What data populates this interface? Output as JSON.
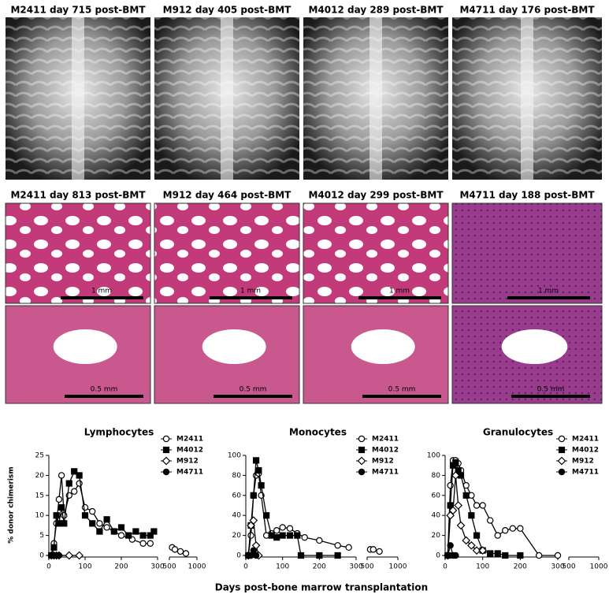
{
  "panels": {
    "xray_labels": [
      "M2411 day 715 post-BMT",
      "M912 day 405 post-BMT",
      "M4012 day 289 post-BMT",
      "M4711 day 176 post-BMT"
    ],
    "histology_labels": [
      "M2411 day 813 post-BMT",
      "M912 day 464 post-BMT",
      "M4012 day 299 post-BMT",
      "M4711 day 188 post-BMT"
    ],
    "scale_bars_row1": [
      "1 mm",
      "1 mm",
      "1 mm",
      "1 mm"
    ],
    "scale_bars_row2": [
      "0.5 mm",
      "0.5 mm",
      "0.5 mm",
      "0.5 mm"
    ]
  },
  "shared_axes": {
    "x_label": "Days post-bone marrow transplantation",
    "y_label": "% donor chimerism"
  },
  "chart_data": [
    {
      "type": "line",
      "title": "Lymphocytes",
      "xlim": [
        0,
        300
      ],
      "xticks": [
        0,
        100,
        200,
        300
      ],
      "x2lim": [
        500,
        1000
      ],
      "x2ticks": [
        500,
        1000
      ],
      "ylim": [
        0,
        25
      ],
      "yticks": [
        0,
        5,
        10,
        15,
        20,
        25
      ],
      "series": [
        {
          "name": "M2411",
          "color": "#000000",
          "marker": "circle",
          "filled": false,
          "x": [
            7,
            14,
            21,
            28,
            35,
            42,
            56,
            70,
            84,
            100,
            120,
            140,
            160,
            180,
            200,
            230,
            260,
            280,
            550,
            600,
            700,
            800
          ],
          "values": [
            0,
            3,
            8,
            14,
            20,
            10,
            15,
            16,
            18,
            12,
            11,
            8,
            7,
            6,
            5,
            4,
            3,
            3,
            2,
            1.5,
            1,
            0.5
          ]
        },
        {
          "name": "M4012",
          "color": "#000000",
          "marker": "square",
          "filled": true,
          "x": [
            7,
            14,
            21,
            28,
            35,
            42,
            56,
            70,
            84,
            100,
            120,
            140,
            160,
            180,
            200,
            220,
            240,
            260,
            280,
            290
          ],
          "values": [
            0,
            2,
            10,
            8,
            12,
            8,
            18,
            21,
            20,
            10,
            8,
            6,
            9,
            6,
            7,
            5,
            6,
            5,
            5,
            6
          ]
        },
        {
          "name": "M912",
          "color": "#000000",
          "marker": "diamond",
          "filled": false,
          "x": [
            7,
            14,
            21,
            28,
            56,
            84
          ],
          "values": [
            0,
            0,
            0,
            0,
            0,
            0
          ]
        },
        {
          "name": "M4711",
          "color": "#000000",
          "marker": "circle",
          "filled": true,
          "x": [
            7,
            14,
            21,
            28
          ],
          "values": [
            0,
            0,
            0,
            0
          ]
        }
      ]
    },
    {
      "type": "line",
      "title": "Monocytes",
      "xlim": [
        0,
        300
      ],
      "xticks": [
        0,
        100,
        200,
        300
      ],
      "x2lim": [
        500,
        1000
      ],
      "x2ticks": [
        500,
        1000
      ],
      "ylim": [
        0,
        100
      ],
      "yticks": [
        0,
        20,
        40,
        60,
        80,
        100
      ],
      "series": [
        {
          "name": "M2411",
          "color": "#000000",
          "marker": "circle",
          "filled": false,
          "x": [
            7,
            14,
            21,
            28,
            35,
            42,
            56,
            70,
            84,
            100,
            120,
            140,
            160,
            200,
            250,
            280,
            550,
            600,
            700
          ],
          "values": [
            0,
            20,
            60,
            80,
            82,
            60,
            20,
            22,
            25,
            28,
            27,
            22,
            18,
            15,
            10,
            8,
            6,
            6,
            4
          ]
        },
        {
          "name": "M4012",
          "color": "#000000",
          "marker": "square",
          "filled": true,
          "x": [
            7,
            14,
            21,
            28,
            35,
            42,
            56,
            70,
            84,
            100,
            120,
            140,
            150,
            200,
            250
          ],
          "values": [
            0,
            30,
            60,
            95,
            85,
            70,
            40,
            20,
            18,
            20,
            20,
            20,
            0,
            0,
            0
          ]
        },
        {
          "name": "M912",
          "color": "#000000",
          "marker": "diamond",
          "filled": false,
          "x": [
            7,
            14,
            21,
            28,
            35
          ],
          "values": [
            0,
            30,
            35,
            10,
            0
          ]
        },
        {
          "name": "M4711",
          "color": "#000000",
          "marker": "circle",
          "filled": true,
          "x": [
            7,
            14,
            21,
            28
          ],
          "values": [
            0,
            0,
            5,
            0
          ]
        }
      ]
    },
    {
      "type": "line",
      "title": "Granulocytes",
      "xlim": [
        0,
        300
      ],
      "xticks": [
        0,
        100,
        200,
        300
      ],
      "x2lim": [
        500,
        1000
      ],
      "x2ticks": [
        500,
        1000
      ],
      "ylim": [
        0,
        100
      ],
      "yticks": [
        0,
        20,
        40,
        60,
        80,
        100
      ],
      "series": [
        {
          "name": "M2411",
          "color": "#000000",
          "marker": "circle",
          "filled": false,
          "x": [
            7,
            14,
            21,
            28,
            35,
            42,
            56,
            70,
            84,
            100,
            120,
            140,
            160,
            180,
            200,
            250,
            300
          ],
          "values": [
            0,
            70,
            95,
            95,
            92,
            85,
            70,
            60,
            50,
            50,
            35,
            20,
            25,
            27,
            27,
            0,
            0
          ]
        },
        {
          "name": "M4012",
          "color": "#000000",
          "marker": "square",
          "filled": true,
          "x": [
            7,
            14,
            21,
            28,
            35,
            42,
            56,
            70,
            84,
            100,
            120,
            140,
            160,
            200
          ],
          "values": [
            0,
            50,
            90,
            93,
            85,
            80,
            60,
            40,
            20,
            5,
            2,
            2,
            0,
            0
          ]
        },
        {
          "name": "M912",
          "color": "#000000",
          "marker": "diamond",
          "filled": false,
          "x": [
            7,
            14,
            21,
            28,
            35,
            42,
            56,
            70,
            84,
            100
          ],
          "values": [
            0,
            40,
            45,
            80,
            50,
            30,
            15,
            10,
            5,
            5
          ]
        },
        {
          "name": "M4711",
          "color": "#000000",
          "marker": "circle",
          "filled": true,
          "x": [
            7,
            14,
            21,
            28
          ],
          "values": [
            0,
            10,
            0,
            0
          ]
        }
      ]
    }
  ]
}
